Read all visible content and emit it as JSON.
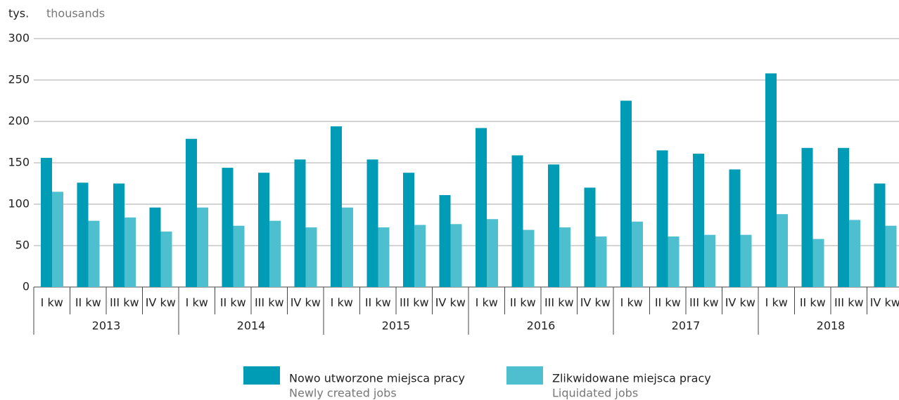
{
  "chart_data": {
    "type": "bar",
    "y_label": "tys.",
    "y_label_en": "thousands",
    "categories": [
      "I kw",
      "II kw",
      "III kw",
      "IV kw",
      "I kw",
      "II kw",
      "III kw",
      "IV kw",
      "I kw",
      "II kw",
      "III kw",
      "IV kw",
      "I kw",
      "II kw",
      "III kw",
      "IV kw",
      "I kw",
      "II kw",
      "III kw",
      "IV kw",
      "I kw",
      "II kw",
      "III kw",
      "IV kw"
    ],
    "years": [
      "2013",
      "2014",
      "2015",
      "2016",
      "2017",
      "2018"
    ],
    "series": [
      {
        "name": "Nowo utworzone miejsca pracy",
        "name_en": "Newly created jobs",
        "color": "#009bb5",
        "values": [
          156,
          126,
          125,
          96,
          179,
          144,
          138,
          154,
          194,
          154,
          138,
          111,
          192,
          159,
          148,
          120,
          225,
          165,
          161,
          142,
          258,
          168,
          168,
          125
        ]
      },
      {
        "name": "Zlikwidowane miejsca pracy",
        "name_en": "Liquidated jobs",
        "color": "#4dbfcf",
        "values": [
          115,
          80,
          84,
          67,
          96,
          74,
          80,
          72,
          96,
          72,
          75,
          76,
          82,
          69,
          72,
          61,
          79,
          61,
          63,
          63,
          88,
          58,
          81,
          74
        ]
      }
    ],
    "ylim": [
      0,
      300
    ],
    "yticks": [
      0,
      50,
      100,
      150,
      200,
      250,
      300
    ],
    "grid": true
  }
}
